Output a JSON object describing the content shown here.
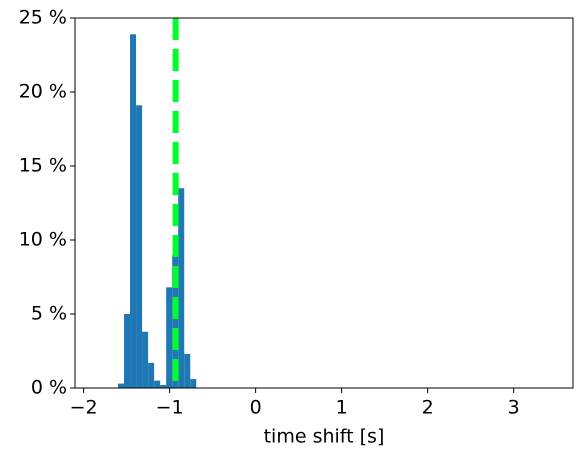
{
  "chart_data": {
    "type": "histogram",
    "xlabel": "time shift [s]",
    "bins": [
      -1.6,
      -1.53,
      -1.46,
      -1.39,
      -1.32,
      -1.25,
      -1.18,
      -1.11,
      -1.04,
      -0.97,
      -0.9,
      -0.83,
      -0.76,
      -0.69
    ],
    "values": [
      0.3,
      5.0,
      23.9,
      19.1,
      3.8,
      1.7,
      0.5,
      0.2,
      6.8,
      9,
      13.5,
      2.3,
      0.6
    ],
    "color": "#1f77b4",
    "vline": {
      "x": -0.93,
      "color": "#00ff2a"
    },
    "xlim": [
      -2.1,
      3.69
    ],
    "xticks": [
      {
        "value": -2,
        "label": "−2"
      },
      {
        "value": -1,
        "label": "−1"
      },
      0,
      1,
      2,
      3
    ],
    "ylim": [
      0,
      25
    ],
    "yticks": [
      {
        "value": 0,
        "label": "0 %"
      },
      {
        "value": 5,
        "label": "5 %"
      },
      {
        "value": 10,
        "label": "10 %"
      },
      {
        "value": 15,
        "label": "15 %"
      },
      {
        "value": 20,
        "label": "20 %"
      },
      {
        "value": 25,
        "label": "25 %"
      }
    ]
  }
}
